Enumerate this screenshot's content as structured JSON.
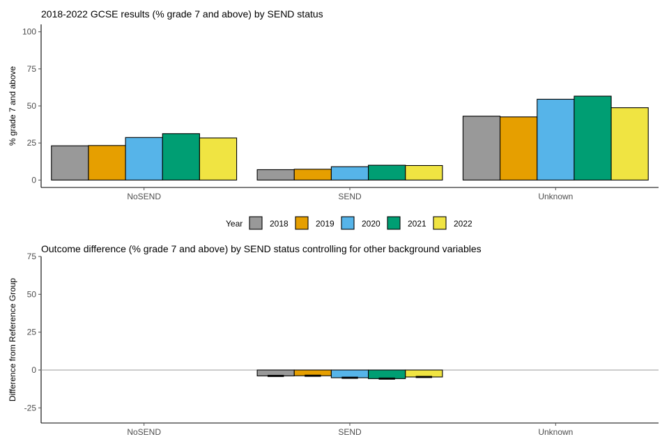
{
  "colors": {
    "2018": "#999999",
    "2019": "#E69F00",
    "2020": "#56B4E9",
    "2021": "#009E73",
    "2022": "#F0E442",
    "axis": "#000000",
    "tick_text": "#4d4d4d",
    "zero_line": "#999999"
  },
  "legend": {
    "title": "Year",
    "items": [
      "2018",
      "2019",
      "2020",
      "2021",
      "2022"
    ]
  },
  "chart_data": [
    {
      "type": "bar",
      "title": "2018-2022 GCSE results (% grade 7 and above) by SEND status",
      "xlabel": "",
      "ylabel": "% grade 7 and above",
      "categories": [
        "NoSEND",
        "SEND",
        "Unknown"
      ],
      "ylim": [
        -5,
        105
      ],
      "yticks": [
        0,
        25,
        50,
        75,
        100
      ],
      "grid": false,
      "series": [
        {
          "name": "2018",
          "values": [
            23.1,
            7.0,
            43.1
          ]
        },
        {
          "name": "2019",
          "values": [
            23.3,
            7.3,
            42.6
          ]
        },
        {
          "name": "2020",
          "values": [
            28.7,
            9.0,
            54.5
          ]
        },
        {
          "name": "2021",
          "values": [
            31.3,
            10.0,
            56.6
          ]
        },
        {
          "name": "2022",
          "values": [
            28.4,
            9.8,
            48.8
          ]
        }
      ]
    },
    {
      "type": "bar",
      "title": "Outcome difference (% grade 7 and above) by SEND status controlling for other background variables",
      "xlabel": "",
      "ylabel": "Difference from Reference Group",
      "categories": [
        "NoSEND",
        "SEND",
        "Unknown"
      ],
      "ylim": [
        -35,
        75
      ],
      "yticks": [
        -25,
        0,
        25,
        50,
        75
      ],
      "grid": false,
      "zero_line": true,
      "series": [
        {
          "name": "2018",
          "values": [
            null,
            -3.9,
            null
          ],
          "error": [
            null,
            0.4,
            null
          ]
        },
        {
          "name": "2019",
          "values": [
            null,
            -3.8,
            null
          ],
          "error": [
            null,
            0.4,
            null
          ]
        },
        {
          "name": "2020",
          "values": [
            null,
            -5.1,
            null
          ],
          "error": [
            null,
            0.4,
            null
          ]
        },
        {
          "name": "2021",
          "values": [
            null,
            -5.7,
            null
          ],
          "error": [
            null,
            0.4,
            null
          ]
        },
        {
          "name": "2022",
          "values": [
            null,
            -4.6,
            null
          ],
          "error": [
            null,
            0.4,
            null
          ]
        }
      ]
    }
  ]
}
